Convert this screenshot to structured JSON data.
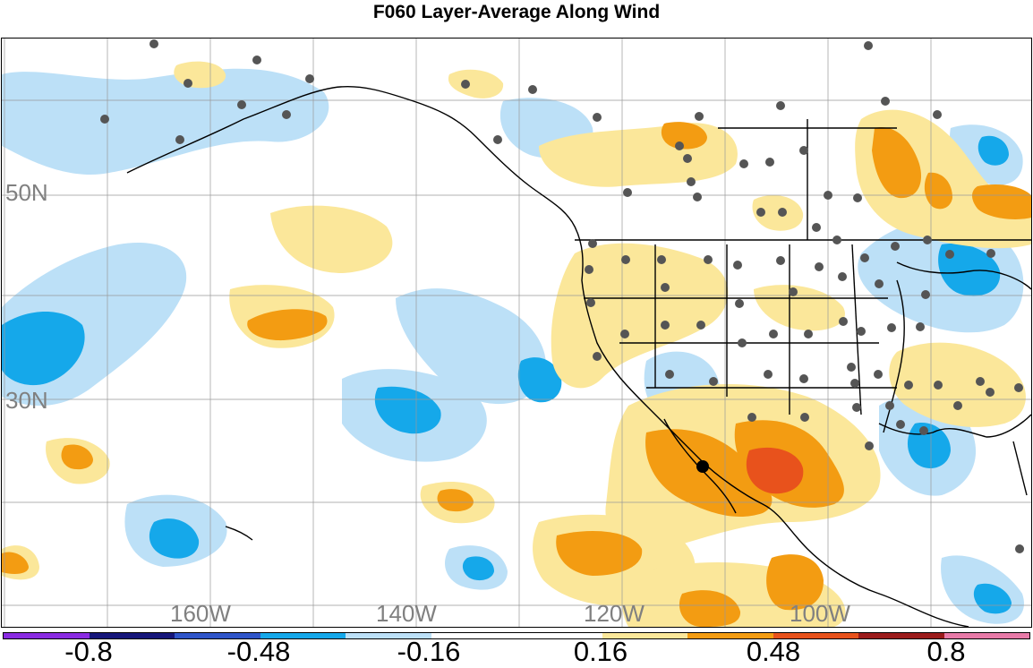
{
  "title": "F060 Layer-Average Along Wind",
  "lat_labels": [
    "50N",
    "30N"
  ],
  "lon_labels": [
    "160W",
    "140W",
    "120W",
    "100W"
  ],
  "colorbar": {
    "colors": [
      "#8a2be2",
      "#16167a",
      "#2f55c9",
      "#15a8ea",
      "#bce0f7",
      "#ffffff",
      "#ffffff",
      "#fbe79a",
      "#f39c12",
      "#e8521c",
      "#9b1b1b",
      "#e87aa8"
    ],
    "tick_labels": [
      "-0.8",
      "-0.48",
      "-0.16",
      "0.16",
      "0.48",
      "0.8"
    ]
  },
  "shading_colors": {
    "light_blue": "#bce0f7",
    "blue": "#15a8ea",
    "light_yellow": "#fbe79a",
    "orange": "#f39c12",
    "red_orange": "#e8521c"
  }
}
